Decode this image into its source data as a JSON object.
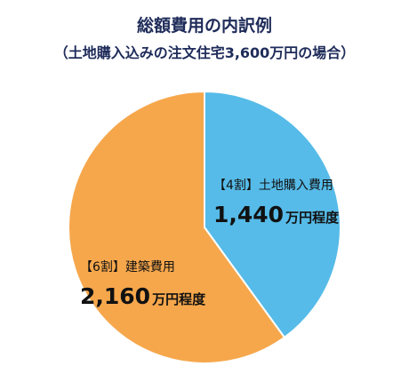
{
  "chart_data": {
    "type": "pie",
    "title": "総額費用の内訳例",
    "subtitle": "（土地購入込みの注文住宅3,600万円の場合）",
    "total": "3,600万円",
    "slices": [
      {
        "share_label": "【4割】",
        "name": "土地購入費用",
        "value": 1440,
        "amount_text": "1,440",
        "unit_text": "万円程度",
        "color": "#56bbe8"
      },
      {
        "share_label": "【6割】",
        "name": "建築費用",
        "value": 2160,
        "amount_text": "2,160",
        "unit_text": "万円程度",
        "color": "#f6a74c"
      }
    ]
  }
}
